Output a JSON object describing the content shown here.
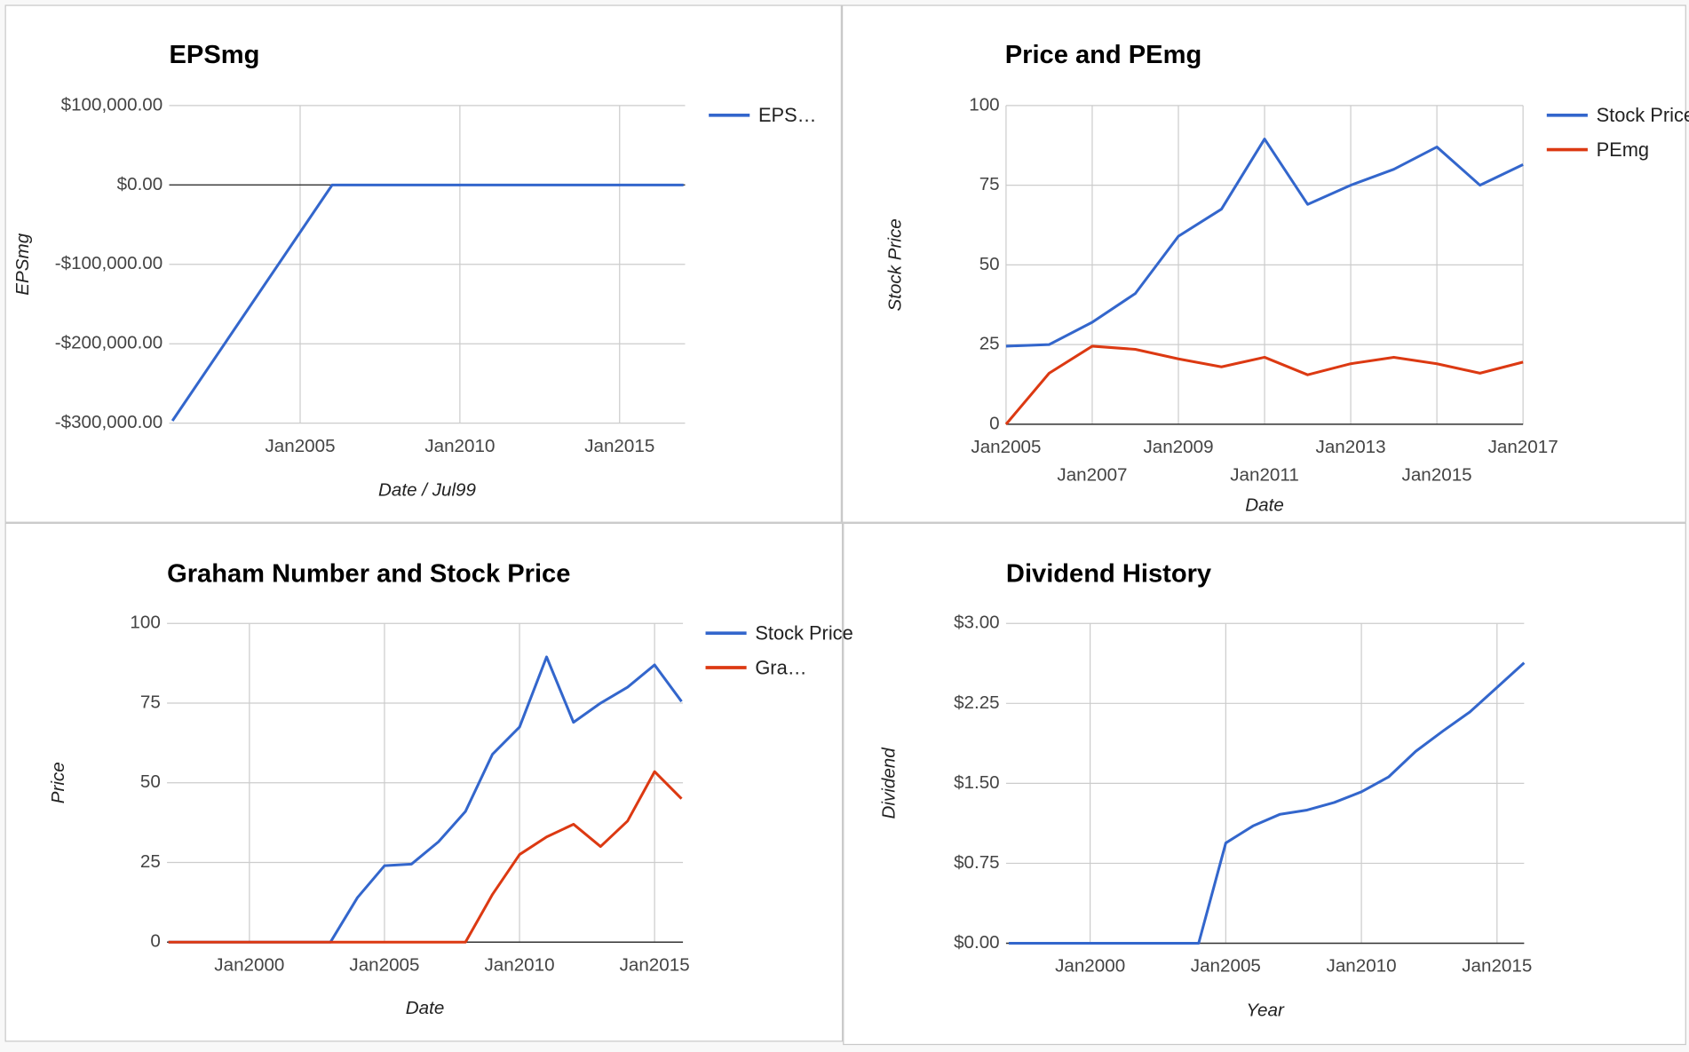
{
  "chart_data": [
    {
      "type": "line",
      "title": "EPSmg",
      "x_label": "Date / Jul99",
      "y_label": "EPSmg",
      "x": [
        2001,
        2006,
        2007,
        2008,
        2009,
        2010,
        2011,
        2012,
        2013,
        2014,
        2015,
        2016,
        2017
      ],
      "series": [
        {
          "name": "EPS…",
          "color": "#3366cc",
          "values": [
            -297000,
            0,
            0,
            0,
            0,
            0,
            0,
            0,
            0,
            0,
            0,
            0,
            0
          ]
        }
      ],
      "xlim": [
        2000.9,
        2017.05
      ],
      "xticks": [
        {
          "value": 2005,
          "label": "Jan2005"
        },
        {
          "value": 2010,
          "label": "Jan2010"
        },
        {
          "value": 2015,
          "label": "Jan2015"
        }
      ],
      "ylim": [
        -300000,
        100000
      ],
      "yticks": [
        {
          "value": -300000,
          "label": "-$300,000.00"
        },
        {
          "value": -200000,
          "label": "-$200,000.00"
        },
        {
          "value": -100000,
          "label": "-$100,000.00"
        },
        {
          "value": 0,
          "label": "$0.00"
        },
        {
          "value": 100000,
          "label": "$100,000.00"
        }
      ],
      "grid": true,
      "legend": "right"
    },
    {
      "type": "line",
      "title": "Price and PEmg",
      "x_label": "Date",
      "y_label": "Stock Price",
      "x": [
        2005,
        2006,
        2007,
        2008,
        2009,
        2010,
        2011,
        2012,
        2013,
        2014,
        2015,
        2016,
        2017
      ],
      "series": [
        {
          "name": "Stock Price",
          "color": "#3366cc",
          "values": [
            24.5,
            25,
            32,
            41,
            59,
            67.5,
            89.5,
            69,
            75,
            80,
            87,
            75,
            81.5
          ]
        },
        {
          "name": "PEmg",
          "color": "#dc3912",
          "values": [
            0,
            16,
            24.5,
            23.5,
            20.5,
            18,
            21,
            15.5,
            19,
            21,
            19,
            16,
            19.5
          ]
        }
      ],
      "xlim": [
        2005,
        2017
      ],
      "xticks": [
        {
          "value": 2005,
          "label": "Jan2005"
        },
        {
          "value": 2007,
          "label": "Jan2007"
        },
        {
          "value": 2009,
          "label": "Jan2009"
        },
        {
          "value": 2011,
          "label": "Jan2011"
        },
        {
          "value": 2013,
          "label": "Jan2013"
        },
        {
          "value": 2015,
          "label": "Jan2015"
        },
        {
          "value": 2017,
          "label": "Jan2017"
        }
      ],
      "ylim": [
        0,
        100
      ],
      "yticks": [
        0,
        25,
        50,
        75,
        100
      ],
      "grid": true,
      "legend": "right"
    },
    {
      "type": "line",
      "title": "Graham Number and Stock Price",
      "x_label": "Date",
      "y_label": "Price",
      "x": [
        1997,
        1998,
        1999,
        2000,
        2001,
        2002,
        2003,
        2004,
        2005,
        2006,
        2007,
        2008,
        2009,
        2010,
        2011,
        2012,
        2013,
        2014,
        2015,
        2016
      ],
      "series": [
        {
          "name": "Stock Price",
          "color": "#3366cc",
          "values": [
            0,
            0,
            0,
            0,
            0,
            0,
            0,
            14,
            24,
            24.5,
            31.5,
            41,
            59,
            67.5,
            89.5,
            69,
            75,
            80,
            87,
            75.5
          ]
        },
        {
          "name": "Gra…",
          "color": "#dc3912",
          "values": [
            0,
            0,
            0,
            0,
            0,
            0,
            0,
            0,
            0,
            0,
            0,
            0,
            15,
            27.5,
            33,
            37,
            30,
            38,
            53.5,
            45
          ]
        }
      ],
      "xlim": [
        1996.95,
        2016.05
      ],
      "xticks": [
        {
          "value": 2000,
          "label": "Jan2000"
        },
        {
          "value": 2005,
          "label": "Jan2005"
        },
        {
          "value": 2010,
          "label": "Jan2010"
        },
        {
          "value": 2015,
          "label": "Jan2015"
        }
      ],
      "ylim": [
        0,
        100
      ],
      "yticks": [
        0,
        25,
        50,
        75,
        100
      ],
      "grid": true,
      "legend": "right"
    },
    {
      "type": "line",
      "title": "Dividend History",
      "x_label": "Year",
      "y_label": "Dividend",
      "x": [
        1997,
        1998,
        1999,
        2000,
        2001,
        2002,
        2003,
        2004,
        2005,
        2006,
        2007,
        2008,
        2009,
        2010,
        2011,
        2012,
        2013,
        2014,
        2015,
        2016
      ],
      "series": [
        {
          "name": "Dividend",
          "color": "#3366cc",
          "values": [
            0,
            0,
            0,
            0,
            0,
            0,
            0,
            0,
            0.94,
            1.1,
            1.21,
            1.25,
            1.32,
            1.42,
            1.56,
            1.8,
            1.99,
            2.17,
            2.4,
            2.63
          ]
        }
      ],
      "xlim": [
        1996.9,
        2016
      ],
      "xticks": [
        {
          "value": 2000,
          "label": "Jan2000"
        },
        {
          "value": 2005,
          "label": "Jan2005"
        },
        {
          "value": 2010,
          "label": "Jan2010"
        },
        {
          "value": 2015,
          "label": "Jan2015"
        }
      ],
      "ylim": [
        0,
        3
      ],
      "yticks": [
        {
          "value": 0,
          "label": "$0.00"
        },
        {
          "value": 0.75,
          "label": "$0.75"
        },
        {
          "value": 1.5,
          "label": "$1.50"
        },
        {
          "value": 2.25,
          "label": "$2.25"
        },
        {
          "value": 3,
          "label": "$3.00"
        }
      ],
      "grid": true,
      "legend": "none"
    }
  ]
}
